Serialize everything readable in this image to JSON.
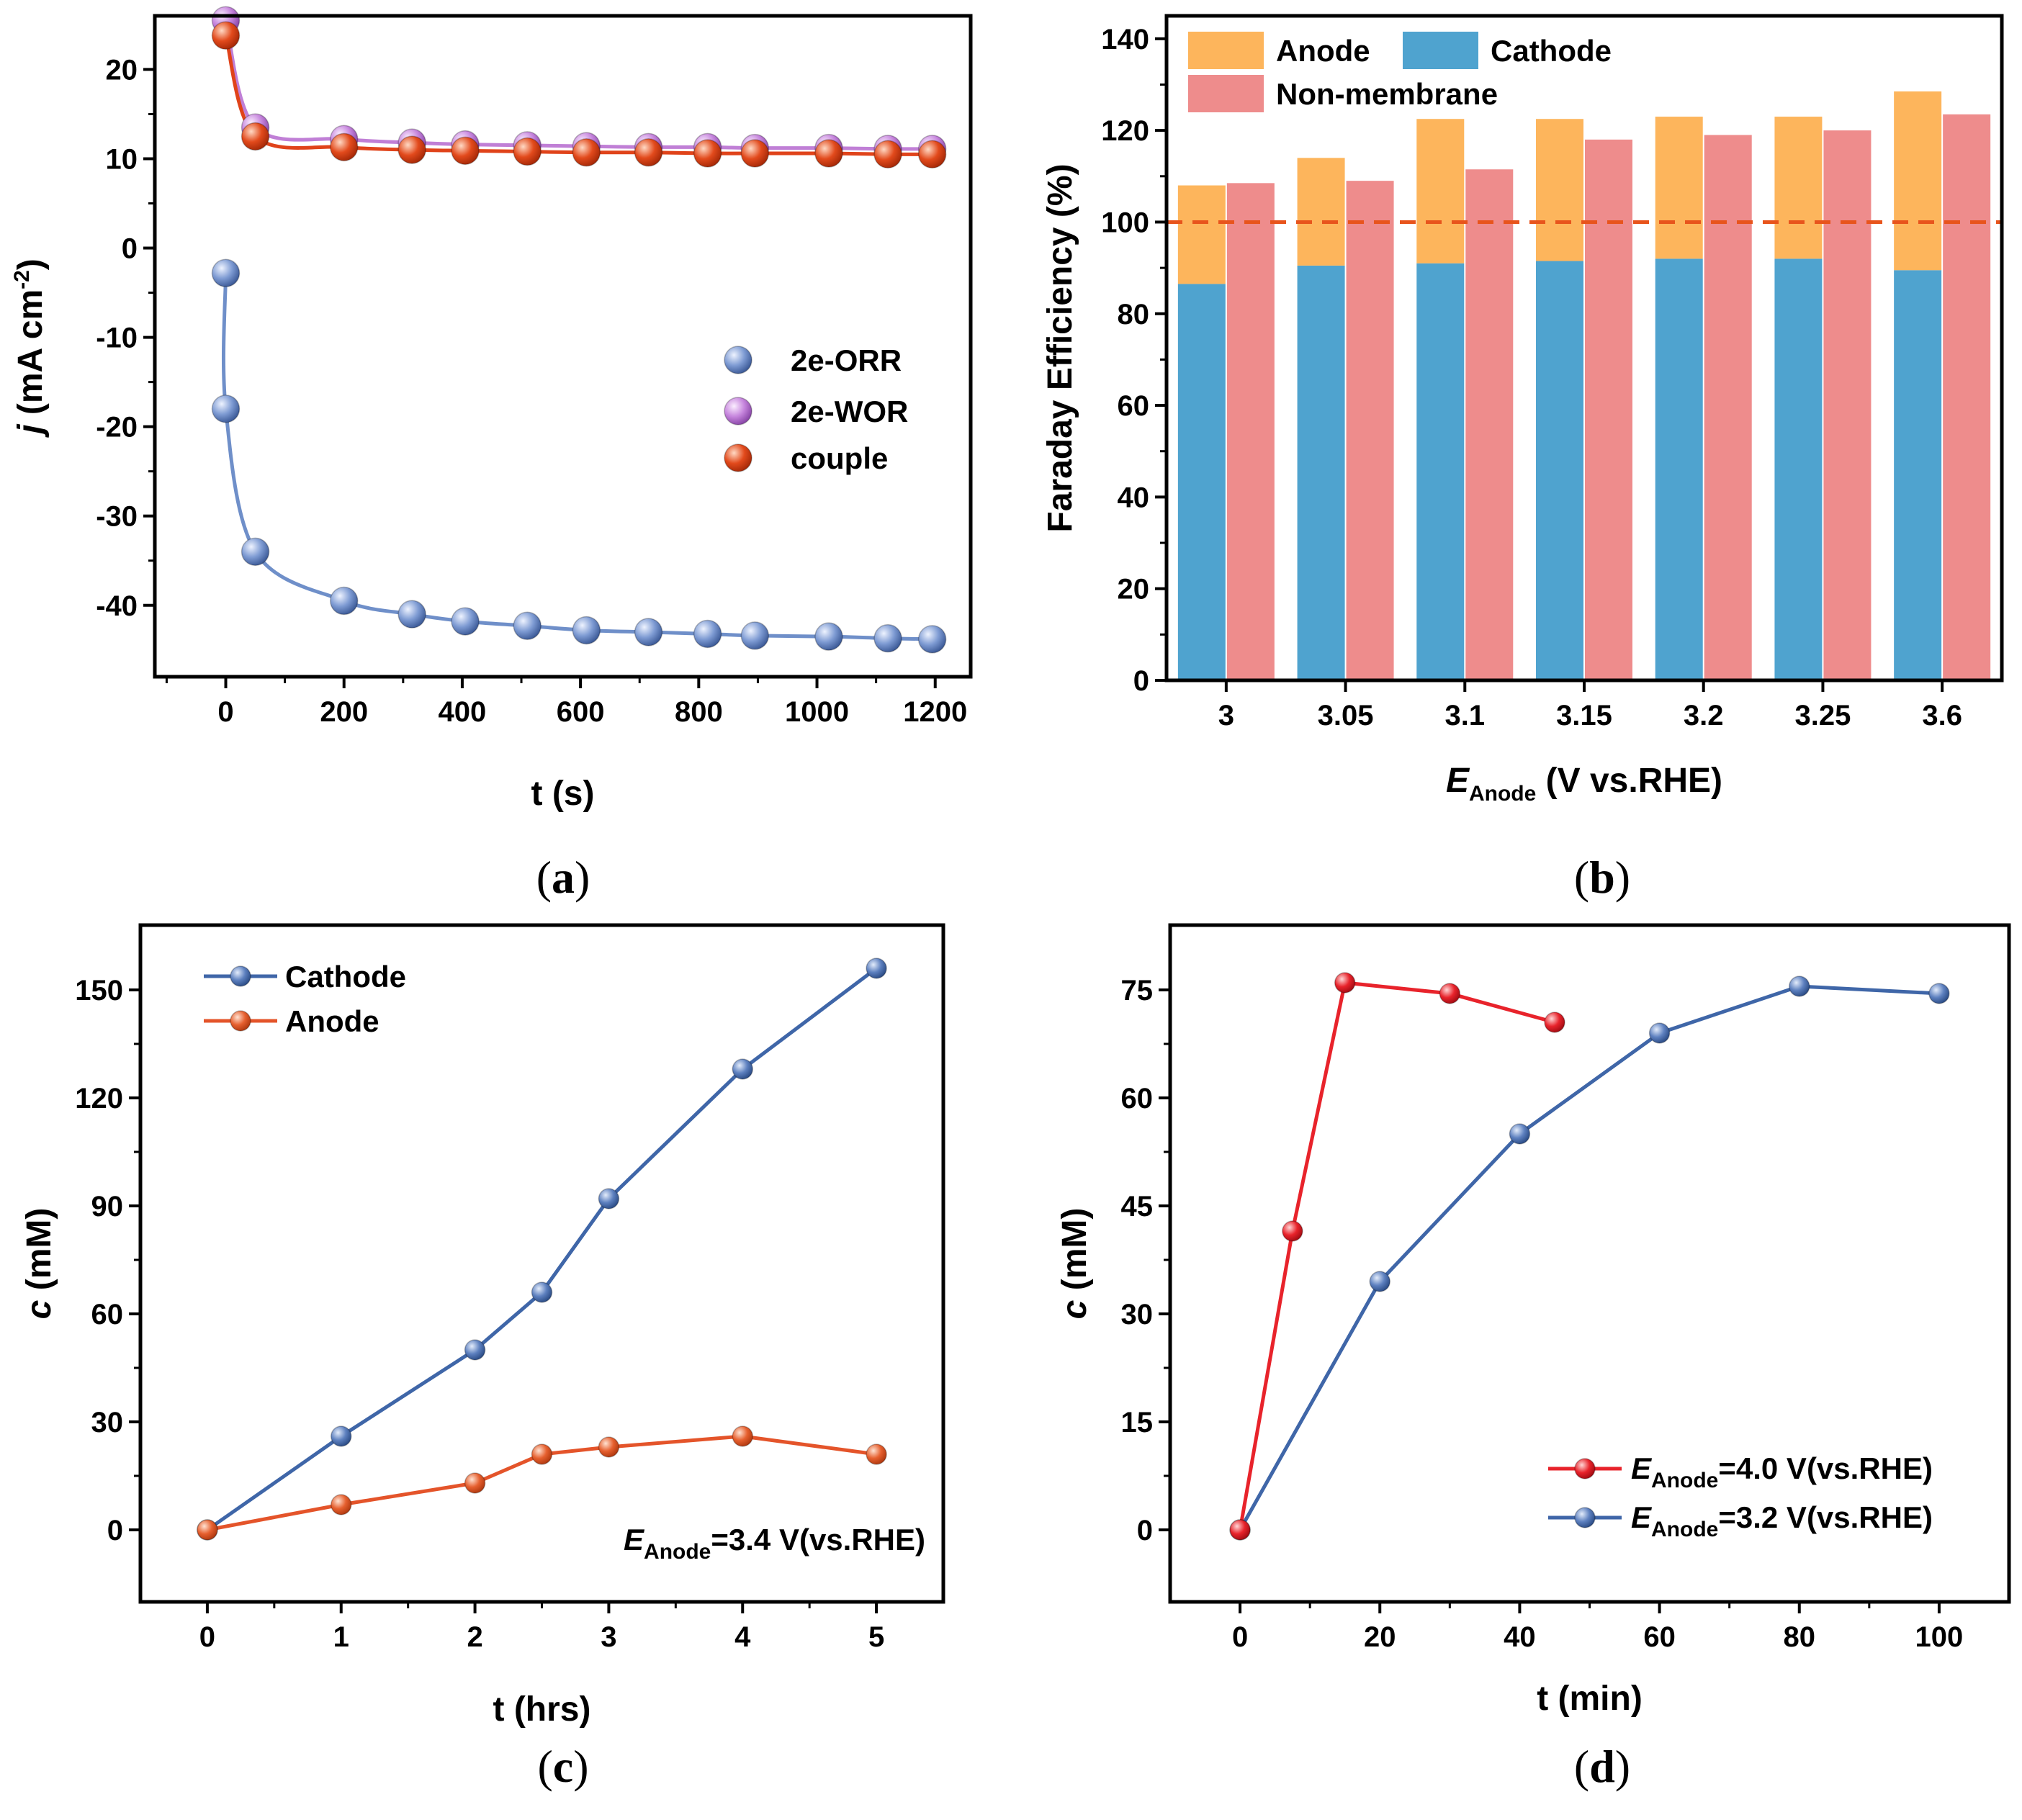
{
  "chart_data": [
    {
      "panel": "a",
      "caption": {
        "open": "(",
        "letter": "a",
        "close": ")"
      },
      "type": "scatter",
      "xlabel": "t (s)",
      "ylabel": {
        "italic": "j",
        "text": " (mA cm",
        "sup": "-2",
        "close": ")"
      },
      "xlim": [
        -120,
        1260
      ],
      "ylim": [
        -48,
        26
      ],
      "xticks": [
        0,
        200,
        400,
        600,
        800,
        1000,
        1200
      ],
      "yticks": [
        -40,
        -30,
        -20,
        -10,
        0,
        10,
        20
      ],
      "series": [
        {
          "name": "2e-ORR",
          "color": "#6f8fc9",
          "x": [
            0,
            0,
            50,
            200,
            315,
            405,
            510,
            610,
            715,
            815,
            895,
            1020,
            1120,
            1195
          ],
          "y": [
            -2.8,
            -18,
            -34,
            -39.5,
            -41,
            -41.8,
            -42.3,
            -42.8,
            -43,
            -43.2,
            -43.4,
            -43.5,
            -43.7,
            -43.8
          ]
        },
        {
          "name": "2e-WOR",
          "color": "#c07fd6",
          "x": [
            0,
            50,
            200,
            315,
            405,
            510,
            610,
            715,
            815,
            895,
            1020,
            1120,
            1195
          ],
          "y": [
            25.5,
            13.5,
            12.2,
            11.8,
            11.6,
            11.5,
            11.4,
            11.3,
            11.3,
            11.2,
            11.2,
            11.1,
            11.1
          ]
        },
        {
          "name": "couple",
          "color": "#e0431a",
          "x": [
            0,
            50,
            200,
            315,
            405,
            510,
            610,
            715,
            815,
            895,
            1020,
            1120,
            1195
          ],
          "y": [
            23.8,
            12.5,
            11.3,
            11,
            10.9,
            10.8,
            10.7,
            10.7,
            10.6,
            10.6,
            10.6,
            10.5,
            10.5
          ]
        }
      ]
    },
    {
      "panel": "b",
      "caption": {
        "open": "(",
        "letter": "b",
        "close": ")"
      },
      "type": "bar",
      "xlabel": {
        "italic": "E",
        "sub": "Anode",
        "text": " (V vs.RHE)"
      },
      "ylabel": "Faraday Efficiency (%)",
      "ylim": [
        0,
        145
      ],
      "yticks": [
        0,
        20,
        40,
        60,
        80,
        100,
        120,
        140
      ],
      "categories": [
        "3",
        "3.05",
        "3.1",
        "3.15",
        "3.2",
        "3.25",
        "3.6"
      ],
      "series": [
        {
          "name": "Cathode",
          "color": "#4fa3cf",
          "values": [
            86.5,
            90.5,
            91,
            91.5,
            92,
            92,
            89.5
          ]
        },
        {
          "name": "Anode",
          "color": "#fdb55c",
          "values": [
            21.5,
            23.5,
            31.5,
            31,
            31,
            31,
            39
          ]
        },
        {
          "name": "Non-membrane",
          "color": "#ee8c8c",
          "values": [
            108.5,
            109,
            111.5,
            118,
            119,
            120,
            123.5
          ]
        }
      ],
      "reference_line": {
        "y": 100,
        "color": "#e8541c"
      }
    },
    {
      "panel": "c",
      "caption": {
        "open": "(",
        "letter": "c",
        "close": ")"
      },
      "type": "line",
      "xlabel": "t (hrs)",
      "ylabel": {
        "italic": "c",
        "text": " (mM)"
      },
      "xlim": [
        -0.5,
        5.5
      ],
      "ylim": [
        -20,
        168
      ],
      "xticks": [
        0,
        1,
        2,
        3,
        4,
        5
      ],
      "yticks": [
        0,
        30,
        60,
        90,
        120,
        150
      ],
      "annotation": {
        "italic": "E",
        "sub": "Anode",
        "text": "=3.4 V(vs.RHE)"
      },
      "series": [
        {
          "name": "Cathode",
          "color": "#3f66a8",
          "x": [
            0,
            1,
            2,
            2.5,
            3,
            4,
            5
          ],
          "y": [
            0,
            26,
            50,
            66,
            92,
            128,
            156
          ]
        },
        {
          "name": "Anode",
          "color": "#e4542a",
          "x": [
            0,
            1,
            2,
            2.5,
            3,
            4,
            5
          ],
          "y": [
            0,
            7,
            13,
            21,
            23,
            26,
            21
          ]
        }
      ]
    },
    {
      "panel": "d",
      "caption": {
        "open": "(",
        "letter": "d",
        "close": ")"
      },
      "type": "line",
      "xlabel": "t (min)",
      "ylabel": {
        "italic": "c",
        "text": " (mM)"
      },
      "xlim": [
        -10,
        110
      ],
      "ylim": [
        -10,
        84
      ],
      "xticks": [
        0,
        20,
        40,
        60,
        80,
        100
      ],
      "yticks": [
        0,
        15,
        30,
        45,
        60,
        75
      ],
      "series": [
        {
          "name": "4.0",
          "label": {
            "italic": "E",
            "sub": "Anode",
            "text": "=4.0 V(vs.RHE)"
          },
          "color": "#e8232b",
          "x": [
            0,
            7.5,
            15,
            30,
            45
          ],
          "y": [
            0,
            41.5,
            76,
            74.5,
            70.5
          ]
        },
        {
          "name": "3.2",
          "label": {
            "italic": "E",
            "sub": "Anode",
            "text": "=3.2 V(vs.RHE)"
          },
          "color": "#3f66a8",
          "x": [
            0,
            20,
            40,
            60,
            80,
            100
          ],
          "y": [
            0,
            34.5,
            55,
            69,
            75.5,
            74.5
          ]
        }
      ]
    }
  ]
}
